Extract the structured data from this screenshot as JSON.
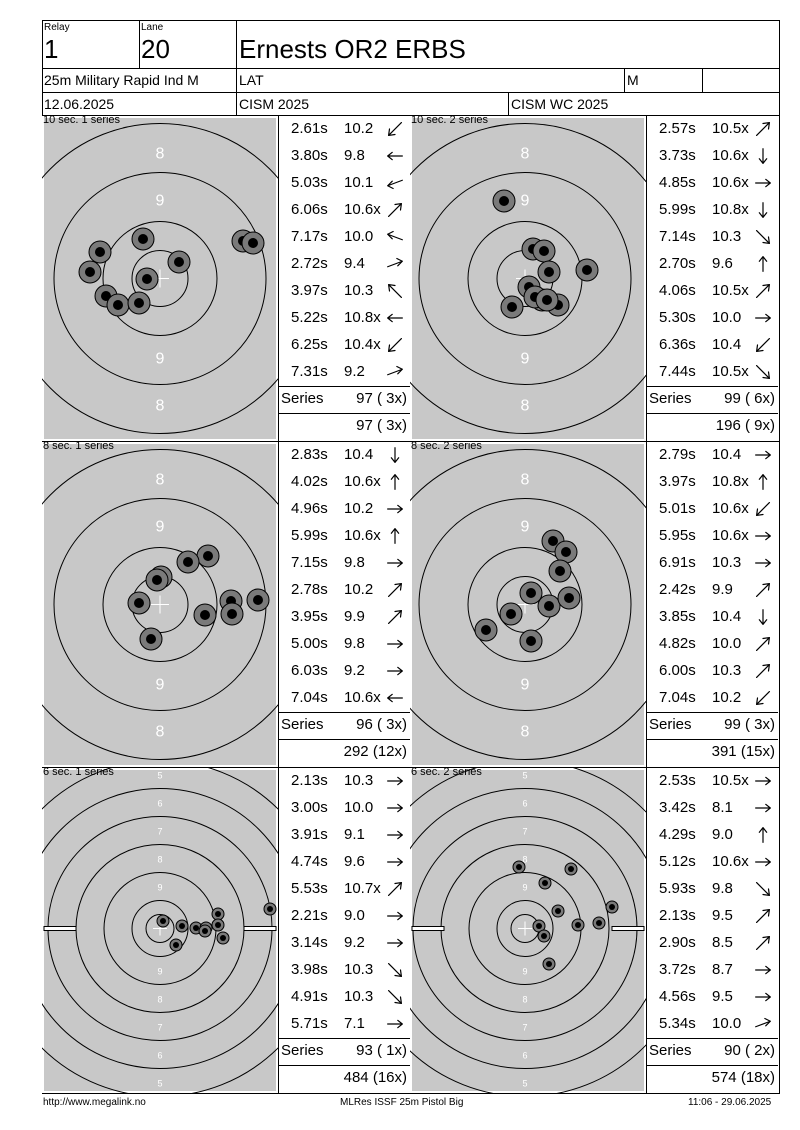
{
  "header": {
    "relay_label": "Relay",
    "relay_value": "1",
    "lane_label": "Lane",
    "lane_value": "20",
    "shooter_name": "Ernests OR2 ERBS",
    "event": "25m Military Rapid Ind M",
    "nation": "LAT",
    "gender": "M",
    "date": "12.06.2025",
    "competition": "CISM 2025",
    "competition_sub": "CISM WC 2025"
  },
  "panels": [
    {
      "title": "10 sec. 1 series",
      "target_type": "large",
      "shots": [
        {
          "time": "2.61s",
          "score": "10.2",
          "dir": "down-left"
        },
        {
          "time": "3.80s",
          "score": "9.8",
          "dir": "left"
        },
        {
          "time": "5.03s",
          "score": "10.1",
          "dir": "left-down"
        },
        {
          "time": "6.06s",
          "score": "10.6x",
          "dir": "up-right"
        },
        {
          "time": "7.17s",
          "score": "10.0",
          "dir": "left-up"
        },
        {
          "time": "2.72s",
          "score": "9.4",
          "dir": "right-up"
        },
        {
          "time": "3.97s",
          "score": "10.3",
          "dir": "up-left"
        },
        {
          "time": "5.22s",
          "score": "10.8x",
          "dir": "left"
        },
        {
          "time": "6.25s",
          "score": "10.4x",
          "dir": "down-left"
        },
        {
          "time": "7.31s",
          "score": "9.2",
          "dir": "right-up"
        }
      ],
      "series_label": "Series",
      "series_value": "97 ( 3x)",
      "total": "97 ( 3x)"
    },
    {
      "title": "10 sec. 2 series",
      "target_type": "large",
      "shots": [
        {
          "time": "2.57s",
          "score": "10.5x",
          "dir": "up-right"
        },
        {
          "time": "3.73s",
          "score": "10.6x",
          "dir": "down"
        },
        {
          "time": "4.85s",
          "score": "10.6x",
          "dir": "right"
        },
        {
          "time": "5.99s",
          "score": "10.8x",
          "dir": "down"
        },
        {
          "time": "7.14s",
          "score": "10.3",
          "dir": "down-right"
        },
        {
          "time": "2.70s",
          "score": "9.6",
          "dir": "up"
        },
        {
          "time": "4.06s",
          "score": "10.5x",
          "dir": "up-right"
        },
        {
          "time": "5.30s",
          "score": "10.0",
          "dir": "right"
        },
        {
          "time": "6.36s",
          "score": "10.4",
          "dir": "down-left"
        },
        {
          "time": "7.44s",
          "score": "10.5x",
          "dir": "down-right"
        }
      ],
      "series_label": "Series",
      "series_value": "99 ( 6x)",
      "total": "196 ( 9x)"
    },
    {
      "title": "8 sec. 1 series",
      "target_type": "large",
      "shots": [
        {
          "time": "2.83s",
          "score": "10.4",
          "dir": "down"
        },
        {
          "time": "4.02s",
          "score": "10.6x",
          "dir": "up"
        },
        {
          "time": "4.96s",
          "score": "10.2",
          "dir": "right"
        },
        {
          "time": "5.99s",
          "score": "10.6x",
          "dir": "up"
        },
        {
          "time": "7.15s",
          "score": "9.8",
          "dir": "right"
        },
        {
          "time": "2.78s",
          "score": "10.2",
          "dir": "up-right"
        },
        {
          "time": "3.95s",
          "score": "9.9",
          "dir": "up-right"
        },
        {
          "time": "5.00s",
          "score": "9.8",
          "dir": "right"
        },
        {
          "time": "6.03s",
          "score": "9.2",
          "dir": "right"
        },
        {
          "time": "7.04s",
          "score": "10.6x",
          "dir": "left"
        }
      ],
      "series_label": "Series",
      "series_value": "96 ( 3x)",
      "total": "292 (12x)"
    },
    {
      "title": "8 sec. 2 series",
      "target_type": "large",
      "shots": [
        {
          "time": "2.79s",
          "score": "10.4",
          "dir": "right"
        },
        {
          "time": "3.97s",
          "score": "10.8x",
          "dir": "up"
        },
        {
          "time": "5.01s",
          "score": "10.6x",
          "dir": "down-left"
        },
        {
          "time": "5.95s",
          "score": "10.6x",
          "dir": "right"
        },
        {
          "time": "6.91s",
          "score": "10.3",
          "dir": "right"
        },
        {
          "time": "2.42s",
          "score": "9.9",
          "dir": "up-right"
        },
        {
          "time": "3.85s",
          "score": "10.4",
          "dir": "down"
        },
        {
          "time": "4.82s",
          "score": "10.0",
          "dir": "up-right"
        },
        {
          "time": "6.00s",
          "score": "10.3",
          "dir": "up-right"
        },
        {
          "time": "7.04s",
          "score": "10.2",
          "dir": "down-left"
        }
      ],
      "series_label": "Series",
      "series_value": "99 ( 3x)",
      "total": "391 (15x)"
    },
    {
      "title": "6 sec. 1 series",
      "target_type": "small",
      "shots": [
        {
          "time": "2.13s",
          "score": "10.3",
          "dir": "right"
        },
        {
          "time": "3.00s",
          "score": "10.0",
          "dir": "right"
        },
        {
          "time": "3.91s",
          "score": "9.1",
          "dir": "right"
        },
        {
          "time": "4.74s",
          "score": "9.6",
          "dir": "right"
        },
        {
          "time": "5.53s",
          "score": "10.7x",
          "dir": "up-right"
        },
        {
          "time": "2.21s",
          "score": "9.0",
          "dir": "right"
        },
        {
          "time": "3.14s",
          "score": "9.2",
          "dir": "right"
        },
        {
          "time": "3.98s",
          "score": "10.3",
          "dir": "down-right"
        },
        {
          "time": "4.91s",
          "score": "10.3",
          "dir": "down-right"
        },
        {
          "time": "5.71s",
          "score": "7.1",
          "dir": "right"
        }
      ],
      "series_label": "Series",
      "series_value": "93 ( 1x)",
      "total": "484 (16x)"
    },
    {
      "title": "6 sec. 2 series",
      "target_type": "small",
      "shots": [
        {
          "time": "2.53s",
          "score": "10.5x",
          "dir": "right"
        },
        {
          "time": "3.42s",
          "score": "8.1",
          "dir": "right"
        },
        {
          "time": "4.29s",
          "score": "9.0",
          "dir": "up"
        },
        {
          "time": "5.12s",
          "score": "10.6x",
          "dir": "right"
        },
        {
          "time": "5.93s",
          "score": "9.8",
          "dir": "down-right"
        },
        {
          "time": "2.13s",
          "score": "9.5",
          "dir": "up-right"
        },
        {
          "time": "2.90s",
          "score": "8.5",
          "dir": "up-right"
        },
        {
          "time": "3.72s",
          "score": "8.7",
          "dir": "right"
        },
        {
          "time": "4.56s",
          "score": "9.5",
          "dir": "right"
        },
        {
          "time": "5.34s",
          "score": "10.0",
          "dir": "right-up"
        }
      ],
      "series_label": "Series",
      "series_value": "90 ( 2x)",
      "total": "574 (18x)"
    }
  ],
  "footer": {
    "left": "http://www.megalink.no",
    "center": "MLRes ISSF 25m Pistol Big",
    "right": "11:06 - 29.06.2025"
  },
  "colors": {
    "target_bg": "#c8c8c8",
    "hole_fill": "#7a7a7a",
    "hole_center": "#000000"
  }
}
